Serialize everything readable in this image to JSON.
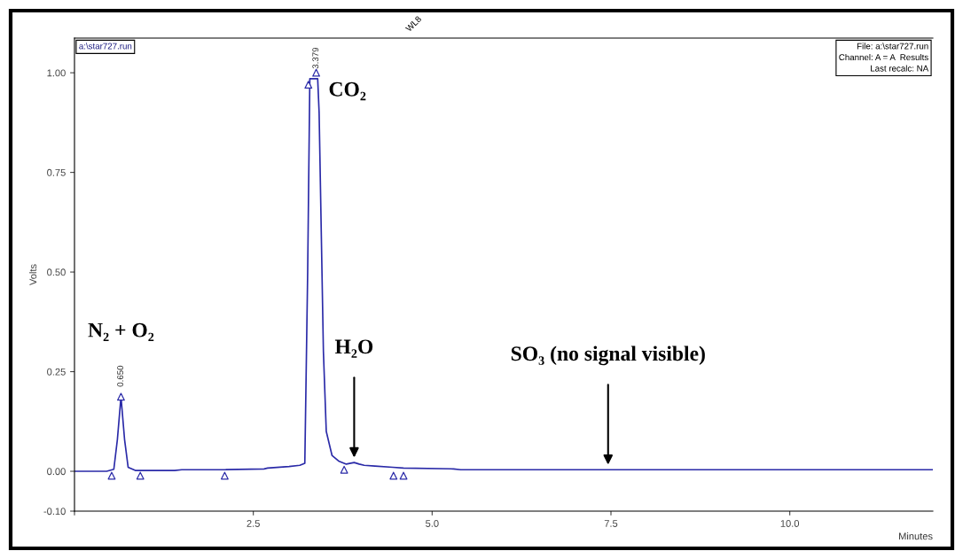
{
  "chart_data": {
    "type": "line",
    "ylabel": "Volts",
    "xlabel": "Minutes",
    "xlim": [
      0,
      12
    ],
    "xticks": [
      {
        "value": 0,
        "label": null
      },
      2.5,
      {
        "value": 5,
        "label": "5.0"
      },
      7.5,
      {
        "value": 10,
        "label": "10.0"
      }
    ],
    "ylim": [
      -0.1,
      1.087
    ],
    "yticks": [
      {
        "value": -0.1,
        "label": "-0.10"
      },
      {
        "value": 0,
        "label": "0.00"
      },
      0.25,
      {
        "value": 0.5,
        "label": "0.50"
      },
      0.75,
      {
        "value": 1,
        "label": "1.00"
      }
    ],
    "grid": false,
    "legend": false,
    "series": [
      {
        "color": "#2a2aa8",
        "marker": "none",
        "line_style": "solid",
        "x": [
          0,
          0.45,
          0.55,
          0.6,
          0.65,
          0.7,
          0.75,
          0.85,
          1.4,
          1.5,
          2.1,
          2.65,
          2.7,
          3.0,
          3.15,
          3.22,
          3.26,
          3.29,
          3.379,
          3.4,
          3.42,
          3.45,
          3.48,
          3.52,
          3.6,
          3.7,
          3.8,
          3.91,
          3.98,
          4.05,
          4.2,
          4.45,
          4.6,
          5.3,
          5.4,
          7.46,
          12
        ],
        "values": [
          0,
          0,
          0.005,
          0.08,
          0.187,
          0.08,
          0.01,
          0.002,
          0.002,
          0.004,
          0.004,
          0.006,
          0.008,
          0.012,
          0.015,
          0.02,
          0.5,
          0.985,
          0.985,
          0.985,
          0.9,
          0.6,
          0.3,
          0.1,
          0.04,
          0.025,
          0.018,
          0.022,
          0.018,
          0.015,
          0.013,
          0.01,
          0.008,
          0.006,
          0.004,
          0.004,
          0.004
        ]
      },
      {
        "type": "scatter",
        "color": "#2a2aa8",
        "marker": "triangle",
        "x": [
          0.52,
          0.92,
          2.1,
          3.77,
          4.46,
          4.6
        ],
        "values": [
          -0.011,
          -0.011,
          -0.011,
          0.004,
          -0.011,
          -0.011
        ]
      },
      {
        "type": "scatter",
        "color": "#2a2aa8",
        "marker": "triangle",
        "x": [
          0.65,
          3.379,
          3.27
        ],
        "values": [
          0.187,
          1.0,
          0.97
        ]
      }
    ],
    "annotations": [
      "a:\\star727.run",
      "File: a:\\star727.run\nChannel: A = A  Results\nLast recalc: NA",
      "WL8",
      {
        "text": "0.650",
        "x": 0.65,
        "y": 0.187
      },
      {
        "text": "3.379",
        "x": 3.379,
        "y": 0.985
      },
      {
        "text": "CO₂",
        "x": 3.379,
        "y": 0.985
      },
      {
        "text": "N₂ + O₂",
        "x": 0.65,
        "y": 0.187
      },
      {
        "text": "H₂O",
        "x": 3.91,
        "y": 0.022
      },
      {
        "text": "SO₃ (no signal visible)",
        "x": 7.46,
        "y": 0.004
      }
    ]
  }
}
